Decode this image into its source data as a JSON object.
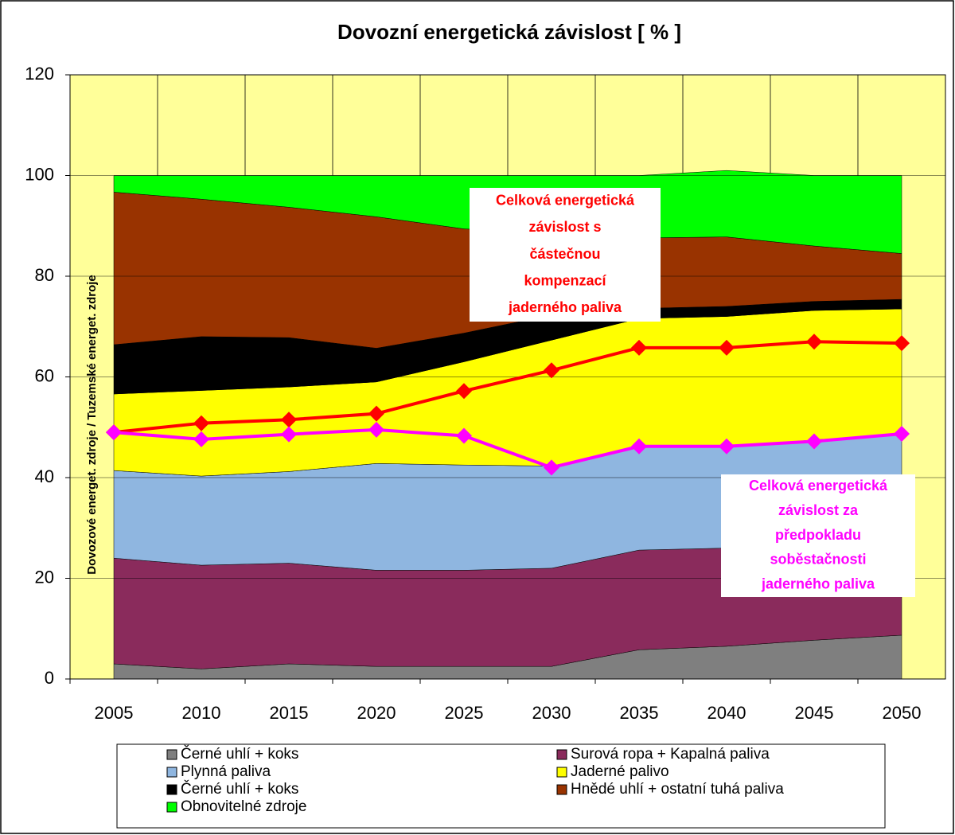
{
  "chart_data": {
    "type": "area",
    "stacked": true,
    "title": "Dovozní energetická závislost [ % ]",
    "y_label": "Dovozové energet. zdroje / Tuzemské  energet. zdroje",
    "categories": [
      "2005",
      "2010",
      "2015",
      "2020",
      "2025",
      "2030",
      "2035",
      "2040",
      "2045",
      "2050"
    ],
    "series": [
      {
        "name": "Černé uhlí + koks",
        "color": "#7f7f7f",
        "values": [
          3,
          2,
          3,
          2.5,
          2.5,
          2.5,
          5.8,
          6.5,
          7.7,
          8.7
        ]
      },
      {
        "name": "Surová ropa + Kapalná paliva",
        "color": "#8a2b5c",
        "values": [
          21,
          20.6,
          20,
          19.1,
          19.1,
          19.5,
          19.8,
          19.5,
          18.8,
          18.3
        ]
      },
      {
        "name": "Plynná paliva",
        "color": "#8fb6e0",
        "values": [
          17.4,
          17.7,
          18.2,
          21.2,
          20.9,
          20.3,
          20.4,
          20,
          21,
          21.5
        ]
      },
      {
        "name": "Jaderné palivo",
        "color": "#ffff00",
        "values": [
          15.2,
          17,
          16.8,
          16.2,
          20.5,
          25,
          25.6,
          26,
          25.7,
          25
        ]
      },
      {
        "name": "Černé uhlí + koks",
        "color": "#000000",
        "values": [
          9.8,
          10.7,
          9.8,
          6.7,
          5.7,
          5,
          2,
          2,
          1.8,
          1.9
        ]
      },
      {
        "name": "Hnědé uhlí + ostatní tuhá paliva",
        "color": "#993300",
        "values": [
          30.3,
          27.3,
          25.9,
          26.1,
          20.7,
          16.2,
          14,
          13.8,
          11,
          9.1
        ]
      },
      {
        "name": "Obnovitelné zdroje",
        "color": "#00ff00",
        "values": [
          3.3,
          4.7,
          6.3,
          8.2,
          10.6,
          11.5,
          12.4,
          13.2,
          14,
          15.5
        ]
      }
    ],
    "lines": [
      {
        "color": "#ff0000",
        "values": [
          49,
          50.8,
          51.5,
          52.7,
          57.2,
          61.3,
          65.8,
          65.8,
          67,
          66.7
        ]
      },
      {
        "color": "#ff00ff",
        "values": [
          49,
          47.6,
          48.6,
          49.5,
          48.3,
          42,
          46.2,
          46.2,
          47.2,
          48.7
        ]
      }
    ],
    "annotations": [
      {
        "color": "#ff0000",
        "lines": [
          "Celková energetická",
          "závislost s",
          "částečnou",
          "kompenzací",
          "jaderného paliva"
        ]
      },
      {
        "color": "#ff00ff",
        "lines": [
          "Celková energetická",
          "závislost za",
          "předpokladu",
          "soběstačnosti",
          "jaderného paliva"
        ]
      }
    ],
    "ylim": [
      0,
      120
    ],
    "yticks": [
      0,
      20,
      40,
      60,
      80,
      100,
      120
    ],
    "grid": true,
    "plot_background": "#ffff99",
    "legend": "bottom"
  }
}
